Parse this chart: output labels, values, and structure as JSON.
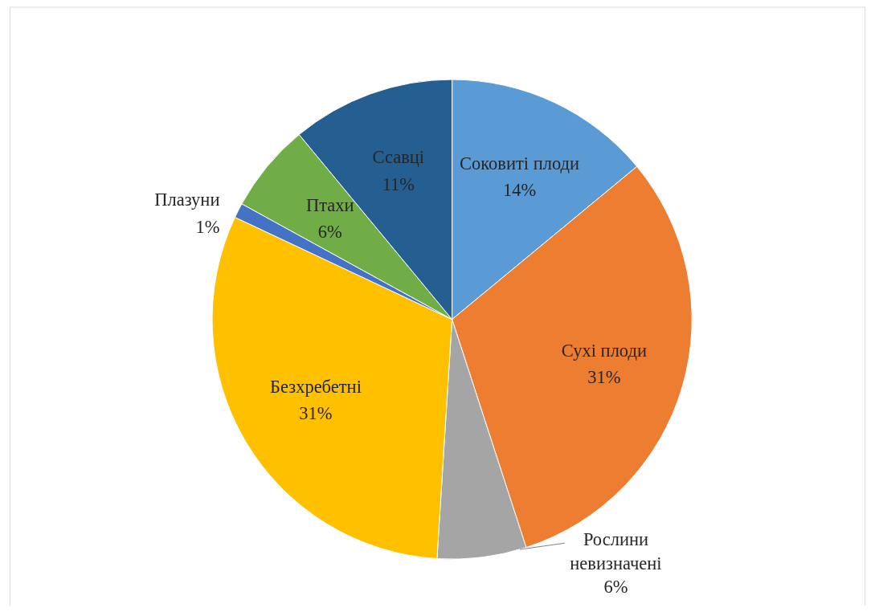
{
  "chart_data": {
    "type": "pie",
    "categories": [
      "Соковиті плоди",
      "Сухі плоди",
      "Рослини невизначені",
      "Безхребетні",
      "Плазуни",
      "Птахи",
      "Ссавці"
    ],
    "values": [
      14,
      31,
      6,
      31,
      1,
      6,
      11
    ],
    "value_labels": [
      "14%",
      "31%",
      "6%",
      "31%",
      "1%",
      "6%",
      "11%"
    ],
    "colors": [
      "#5b9bd5",
      "#ed7d31",
      "#a5a5a5",
      "#ffc000",
      "#4472c4",
      "#70ad47",
      "#255e91"
    ]
  }
}
